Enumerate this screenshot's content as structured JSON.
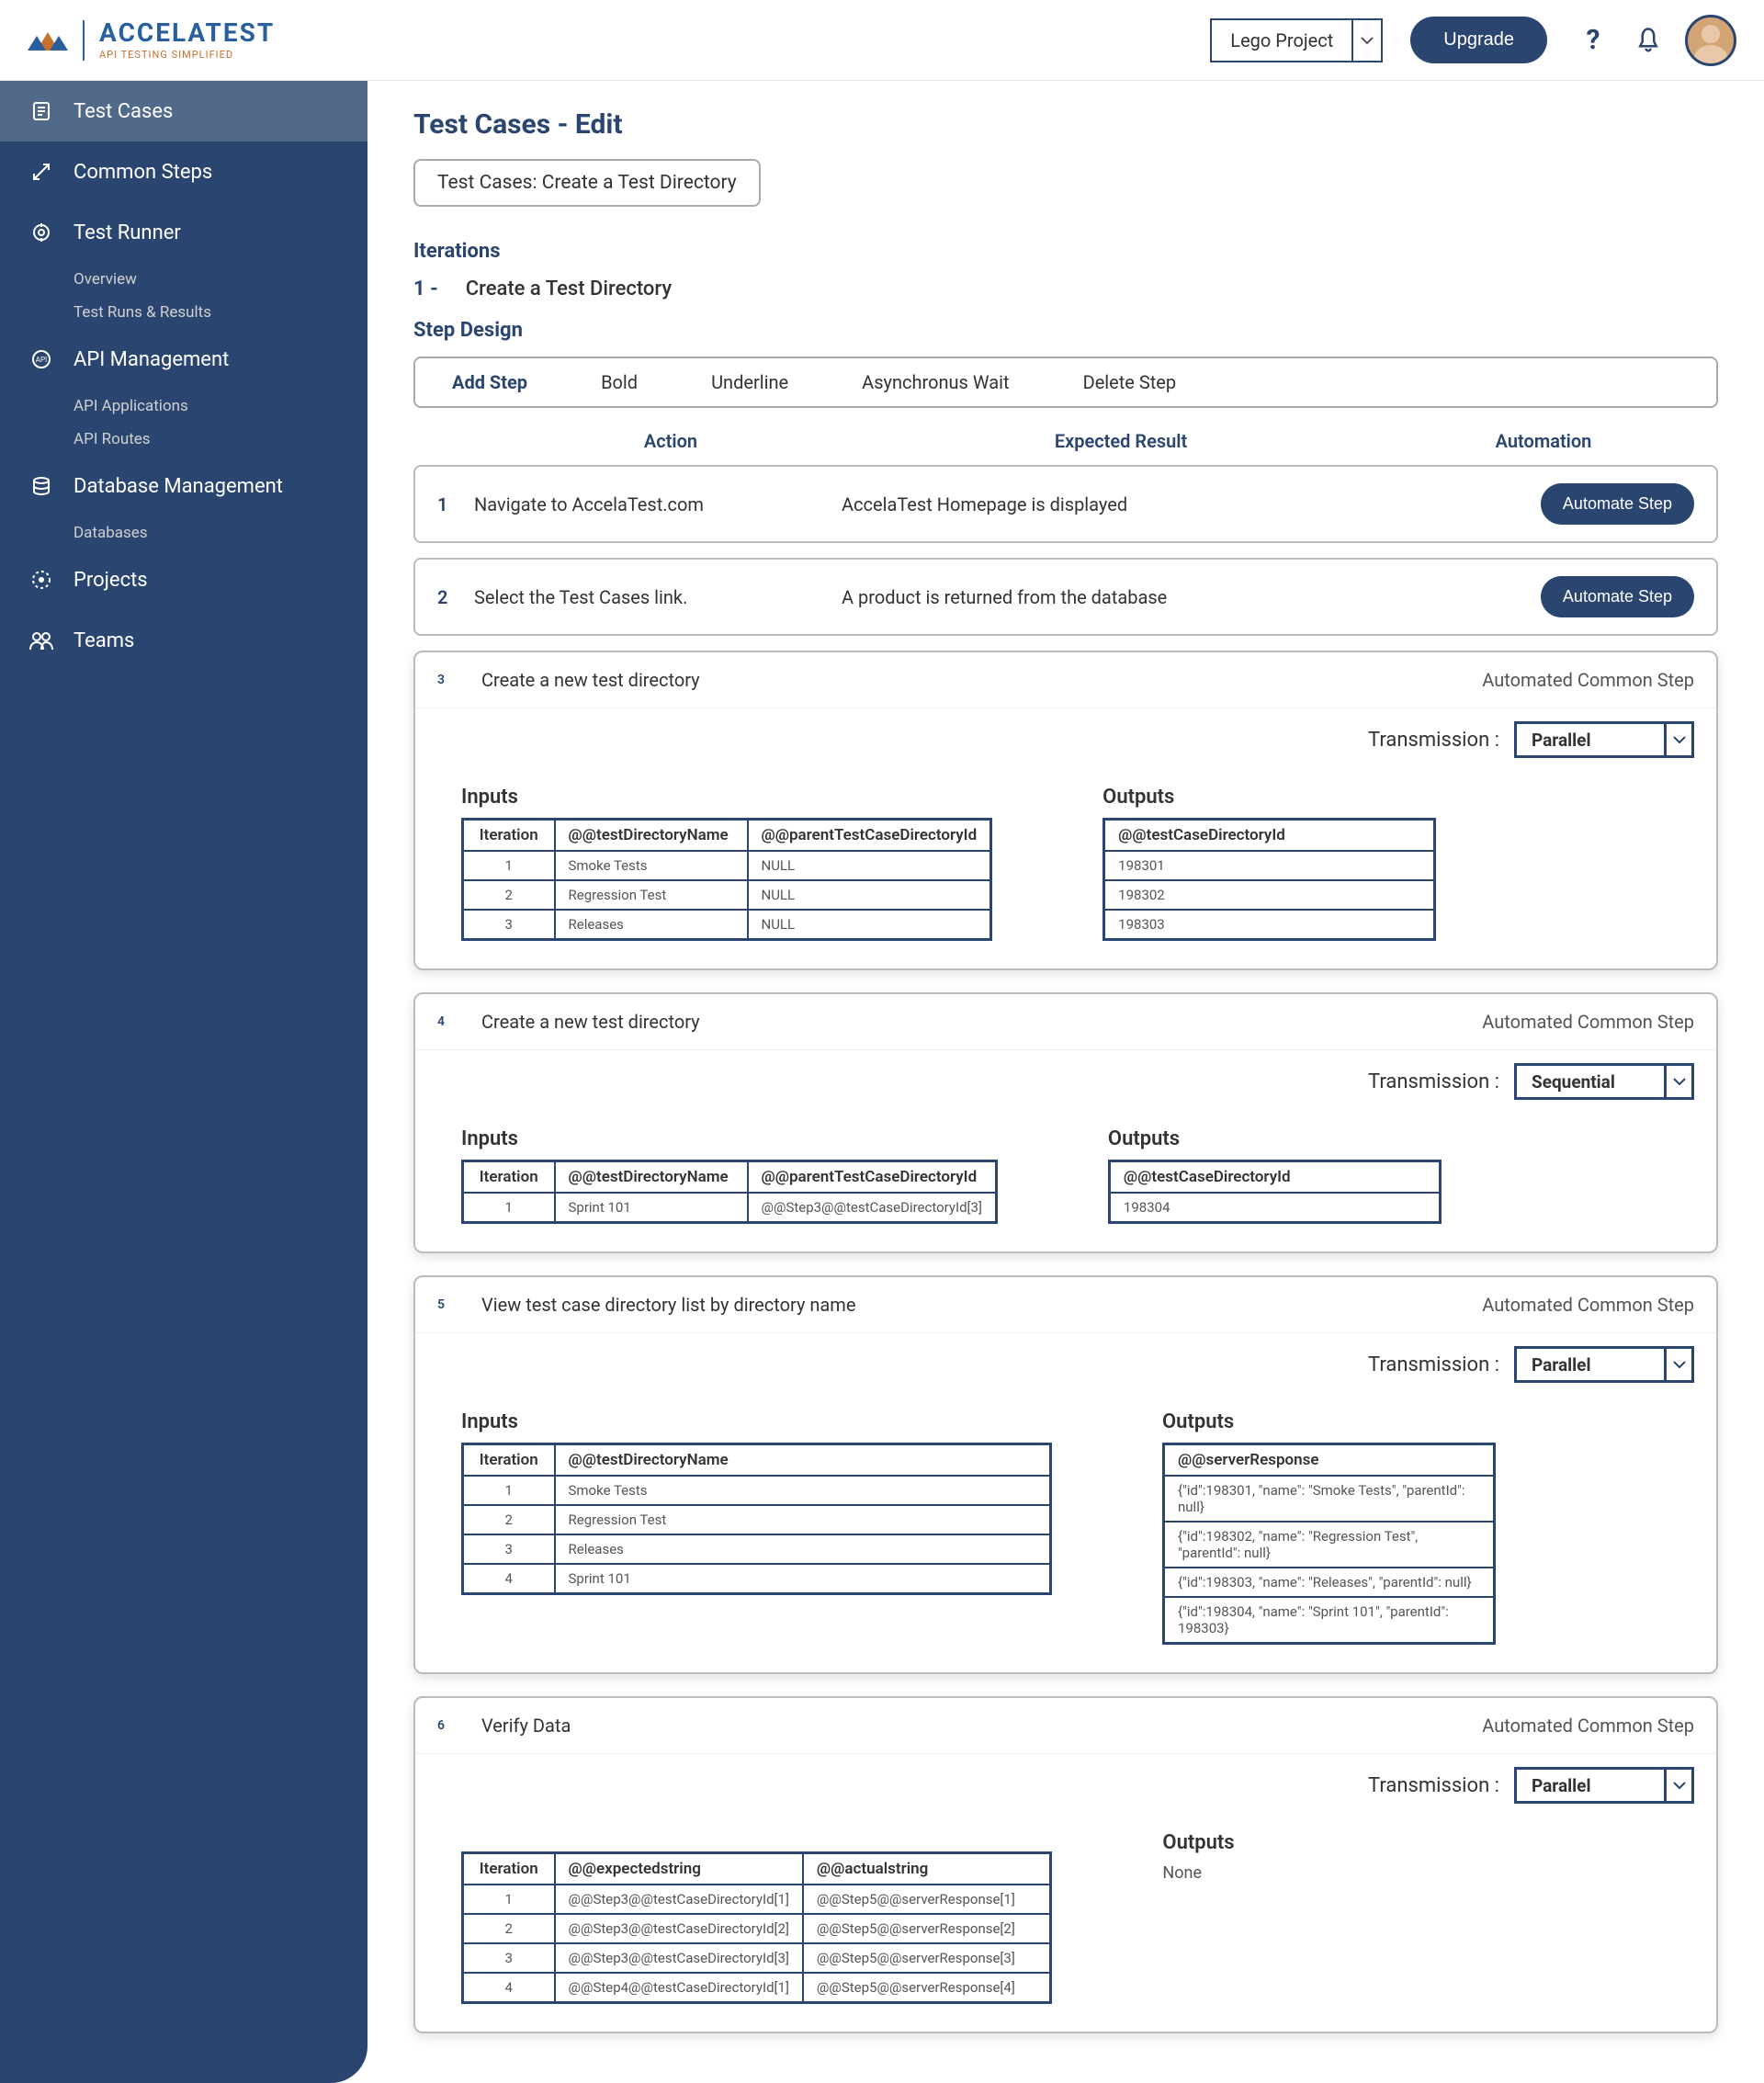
{
  "header": {
    "logo_main": "ACCELATEST",
    "logo_sub": "API TESTING SIMPLIFIED",
    "project": "Lego Project",
    "upgrade": "Upgrade"
  },
  "sidebar": {
    "items": [
      {
        "label": "Test Cases",
        "active": true
      },
      {
        "label": "Common Steps"
      },
      {
        "label": "Test Runner",
        "children": [
          "Overview",
          "Test Runs & Results"
        ]
      },
      {
        "label": "API Management",
        "children": [
          "API Applications",
          "API Routes"
        ]
      },
      {
        "label": "Database Management",
        "children": [
          "Databases"
        ]
      },
      {
        "label": "Projects"
      },
      {
        "label": "Teams"
      }
    ]
  },
  "page": {
    "title": "Test Cases - Edit",
    "subtitle": "Test Cases: Create a Test Directory",
    "iterations_label": "Iterations",
    "iteration_num": "1 -",
    "iteration_name": "Create a Test Directory",
    "step_design_label": "Step Design"
  },
  "toolbar": [
    "Add Step",
    "Bold",
    "Underline",
    "Asynchronus Wait",
    "Delete Step"
  ],
  "columns": {
    "action": "Action",
    "expected": "Expected Result",
    "automation": "Automation"
  },
  "automate_label": "Automate Step",
  "acs_label": "Automated Common Step",
  "trans_label": "Transmission :",
  "io": {
    "inputs": "Inputs",
    "outputs": "Outputs",
    "none": "None"
  },
  "steps": [
    {
      "num": "1",
      "action": "Navigate to AccelaTest.com",
      "expected": "AccelaTest Homepage is displayed"
    },
    {
      "num": "2",
      "action": "Select the Test Cases link.",
      "expected": "A product is returned from the database"
    }
  ],
  "cards": [
    {
      "num": "3",
      "title": "Create a new test directory",
      "transmission": "Parallel",
      "inputs": {
        "headers": [
          "Iteration",
          "@@testDirectoryName",
          "@@parentTestCaseDirectoryId"
        ],
        "rows": [
          [
            "1",
            "Smoke Tests",
            "NULL"
          ],
          [
            "2",
            "Regression Test",
            "NULL"
          ],
          [
            "3",
            "Releases",
            "NULL"
          ]
        ]
      },
      "outputs": {
        "headers": [
          "@@testCaseDirectoryId"
        ],
        "rows": [
          [
            "198301"
          ],
          [
            "198302"
          ],
          [
            "198303"
          ]
        ]
      }
    },
    {
      "num": "4",
      "title": "Create a new test directory",
      "transmission": "Sequential",
      "inputs": {
        "headers": [
          "Iteration",
          "@@testDirectoryName",
          "@@parentTestCaseDirectoryId"
        ],
        "rows": [
          [
            "1",
            "Sprint 101",
            "@@Step3@@testCaseDirectoryId[3]"
          ]
        ]
      },
      "outputs": {
        "headers": [
          "@@testCaseDirectoryId"
        ],
        "rows": [
          [
            "198304"
          ]
        ]
      }
    },
    {
      "num": "5",
      "title": "View test case directory list by directory name",
      "transmission": "Parallel",
      "inputs": {
        "headers": [
          "Iteration",
          "@@testDirectoryName"
        ],
        "rows": [
          [
            "1",
            "Smoke Tests"
          ],
          [
            "2",
            "Regression Test"
          ],
          [
            "3",
            "Releases"
          ],
          [
            "4",
            "Sprint 101"
          ]
        ],
        "wide": true
      },
      "outputs": {
        "headers": [
          "@@serverResponse"
        ],
        "rows": [
          [
            "{\"id\":198301, \"name\": \"Smoke Tests\", \"parentId\": null}"
          ],
          [
            "{\"id\":198302, \"name\": \"Regression Test\", \"parentId\": null}"
          ],
          [
            "{\"id\":198303, \"name\": \"Releases\", \"parentId\": null}"
          ],
          [
            "{\"id\":198304, \"name\": \"Sprint 101\", \"parentId\": 198303}"
          ]
        ]
      }
    },
    {
      "num": "6",
      "title": "Verify Data",
      "transmission": "Parallel",
      "inputs": {
        "headers": [
          "Iteration",
          "@@expectedstring",
          "@@actualstring"
        ],
        "rows": [
          [
            "1",
            "@@Step3@@testCaseDirectoryId[1]",
            "@@Step5@@serverResponse[1]"
          ],
          [
            "2",
            "@@Step3@@testCaseDirectoryId[2]",
            "@@Step5@@serverResponse[2]"
          ],
          [
            "3",
            "@@Step3@@testCaseDirectoryId[3]",
            "@@Step5@@serverResponse[3]"
          ],
          [
            "4",
            "@@Step4@@testCaseDirectoryId[1]",
            "@@Step5@@serverResponse[4]"
          ]
        ]
      },
      "outputs": null,
      "hide_inputs_title": true
    }
  ]
}
